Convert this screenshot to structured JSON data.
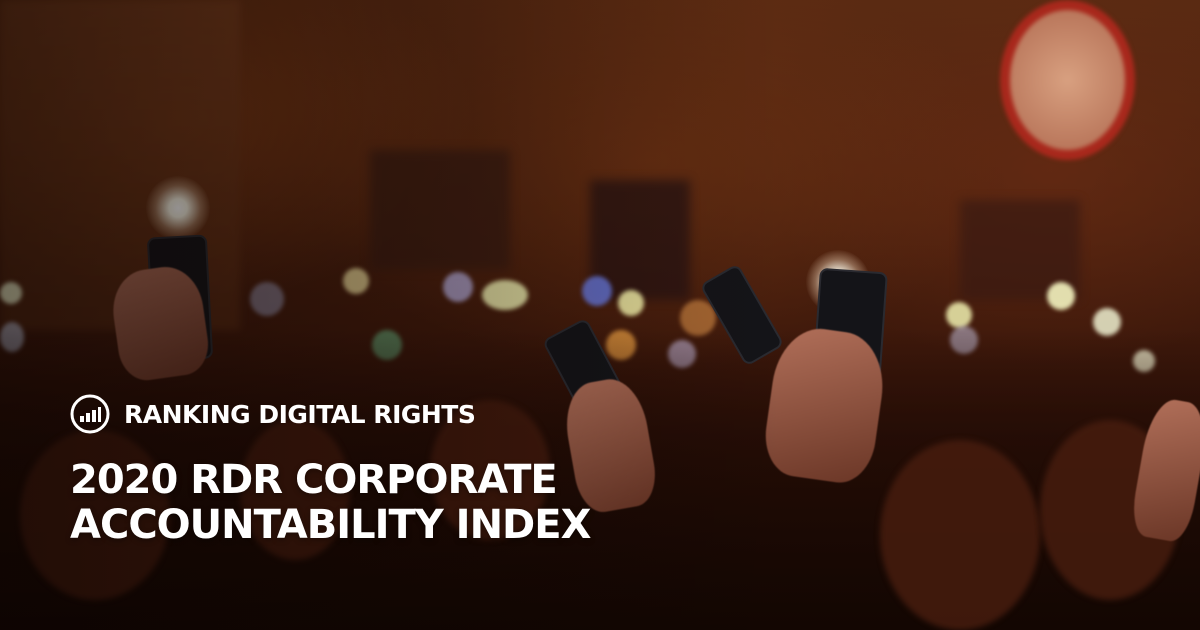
{
  "brand": {
    "logo_icon": "bar-chart-circle-icon",
    "name": "RANKING DIGITAL RIGHTS"
  },
  "headline": {
    "line1": "2020 RDR CORPORATE",
    "line2": "ACCOUNTABILITY INDEX"
  },
  "colors": {
    "text": "#ffffff",
    "background_warm": "#4a200e"
  }
}
